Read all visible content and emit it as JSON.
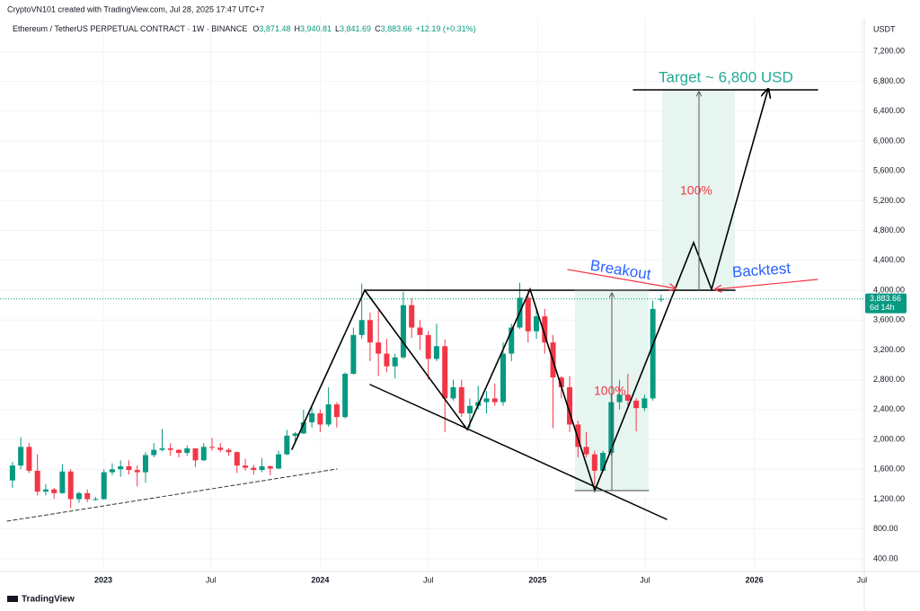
{
  "chart_data": {
    "type": "candlestick",
    "credit": "CryptoVN101 created with TradingView.com, Jul 28, 2025 17:47 UTC+7",
    "title": "Ethereum / TetherUS PERPETUAL CONTRACT · 1W · BINANCE",
    "ohlc_header": [
      "O",
      "3,871.48",
      "H",
      "3,940.81",
      "L",
      "3,841.69",
      "C",
      "3,883.66",
      "+12.19 (+0.31%)"
    ],
    "currency": "USDT",
    "brand": "TradingView",
    "up_color": "#089981",
    "down_color": "#f23645",
    "grid": true,
    "last_price": {
      "value": 3883.66,
      "label": "3,883.66"
    },
    "countdown": "6d 14h",
    "annotations": {
      "target": "Target ~ 6,800 USD",
      "breakout": "Breakout",
      "backtest": "Backtest",
      "measure_top": "100%",
      "measure_bottom": "100%"
    },
    "x": [
      "2022-08-01",
      "2022-08-15",
      "2022-08-29",
      "2022-09-12",
      "2022-09-26",
      "2022-10-10",
      "2022-10-24",
      "2022-11-07",
      "2022-11-21",
      "2022-12-05",
      "2022-12-19",
      "2023-01-02",
      "2023-01-16",
      "2023-01-30",
      "2023-02-13",
      "2023-02-27",
      "2023-03-13",
      "2023-03-27",
      "2023-04-10",
      "2023-04-24",
      "2023-05-08",
      "2023-05-22",
      "2023-06-05",
      "2023-06-19",
      "2023-07-03",
      "2023-07-17",
      "2023-07-31",
      "2023-08-14",
      "2023-08-28",
      "2023-09-11",
      "2023-09-25",
      "2023-10-09",
      "2023-10-23",
      "2023-11-06",
      "2023-11-20",
      "2023-12-04",
      "2023-12-18",
      "2024-01-01",
      "2024-01-15",
      "2024-01-29",
      "2024-02-12",
      "2024-02-26",
      "2024-03-11",
      "2024-03-25",
      "2024-04-08",
      "2024-04-22",
      "2024-05-06",
      "2024-05-20",
      "2024-06-03",
      "2024-06-17",
      "2024-07-01",
      "2024-07-15",
      "2024-07-29",
      "2024-08-12",
      "2024-08-26",
      "2024-09-09",
      "2024-09-23",
      "2024-10-07",
      "2024-10-21",
      "2024-11-04",
      "2024-11-18",
      "2024-12-02",
      "2024-12-16",
      "2024-12-30",
      "2025-01-13",
      "2025-01-27",
      "2025-02-10",
      "2025-02-24",
      "2025-03-10",
      "2025-03-24",
      "2025-04-07",
      "2025-04-21",
      "2025-05-05",
      "2025-05-19",
      "2025-06-02",
      "2025-06-16",
      "2025-06-30",
      "2025-07-14",
      "2025-07-28"
    ],
    "open": [
      1450,
      1650,
      1900,
      1580,
      1300,
      1330,
      1280,
      1570,
      1200,
      1280,
      1200,
      1200,
      1560,
      1600,
      1640,
      1590,
      1560,
      1790,
      1860,
      1880,
      1860,
      1820,
      1880,
      1720,
      1900,
      1890,
      1860,
      1830,
      1650,
      1620,
      1590,
      1640,
      1610,
      1800,
      2050,
      2080,
      2230,
      2350,
      2200,
      2470,
      2300,
      2880,
      3400,
      3600,
      3300,
      3150,
      2980,
      3100,
      3800,
      3500,
      3400,
      3080,
      3250,
      2550,
      2700,
      2350,
      2450,
      2500,
      2550,
      2500,
      3150,
      3500,
      3900,
      3450,
      3650,
      3300,
      2830,
      2700,
      2200,
      1900,
      1800,
      1580,
      1820,
      2500,
      2600,
      2520,
      2420,
      2550,
      3871.48
    ],
    "high": [
      1700,
      2030,
      1950,
      1800,
      1400,
      1350,
      1670,
      1600,
      1300,
      1330,
      1230,
      1600,
      1680,
      1720,
      1720,
      1650,
      1830,
      1950,
      2140,
      1950,
      1870,
      1920,
      1880,
      1950,
      2020,
      1950,
      1880,
      1840,
      1740,
      1660,
      1750,
      1650,
      1850,
      2130,
      2100,
      2400,
      2450,
      2400,
      2700,
      2500,
      2900,
      3500,
      4090,
      3700,
      3730,
      3350,
      3150,
      3980,
      3890,
      3600,
      3450,
      3550,
      3340,
      2800,
      2800,
      2550,
      2720,
      2650,
      2750,
      3300,
      3550,
      4100,
      4000,
      3750,
      3750,
      3400,
      2850,
      2850,
      2250,
      2100,
      1850,
      1850,
      2600,
      2800,
      2880,
      2550,
      2600,
      3860,
      3940.81
    ],
    "low": [
      1350,
      1600,
      1550,
      1250,
      1250,
      1200,
      1270,
      1080,
      1150,
      1160,
      1180,
      1190,
      1520,
      1500,
      1530,
      1370,
      1420,
      1760,
      1840,
      1780,
      1760,
      1780,
      1630,
      1710,
      1850,
      1830,
      1780,
      1550,
      1580,
      1530,
      1560,
      1520,
      1600,
      1790,
      1950,
      2070,
      2160,
      2100,
      2170,
      2160,
      2280,
      2870,
      3350,
      3050,
      2850,
      2900,
      2820,
      3080,
      3360,
      3200,
      2800,
      3050,
      2100,
      2520,
      2300,
      2150,
      2400,
      2350,
      2450,
      2450,
      3050,
      3480,
      3300,
      3350,
      3150,
      2150,
      2550,
      2100,
      1760,
      1760,
      1390,
      1560,
      1780,
      2400,
      2450,
      2110,
      2380,
      2520,
      3841.69
    ],
    "close": [
      1650,
      1900,
      1580,
      1300,
      1330,
      1280,
      1570,
      1200,
      1280,
      1200,
      1200,
      1560,
      1600,
      1640,
      1590,
      1560,
      1790,
      1860,
      1880,
      1860,
      1820,
      1880,
      1720,
      1900,
      1890,
      1860,
      1830,
      1650,
      1620,
      1590,
      1640,
      1610,
      1800,
      2050,
      2080,
      2230,
      2350,
      2200,
      2470,
      2300,
      2880,
      3400,
      3600,
      3300,
      3150,
      2980,
      3100,
      3800,
      3500,
      3400,
      3080,
      3250,
      2550,
      2700,
      2350,
      2450,
      2500,
      2550,
      2500,
      3150,
      3500,
      3900,
      3450,
      3650,
      3300,
      2830,
      2700,
      2200,
      1900,
      1800,
      1580,
      1820,
      2500,
      2600,
      2520,
      2420,
      2550,
      3750,
      3883.66
    ],
    "ylim": [
      230,
      7650
    ],
    "yticks": [
      {
        "value": 400,
        "label": "400.00"
      },
      {
        "value": 800,
        "label": "800.00"
      },
      {
        "value": 1200,
        "label": "1,200.00"
      },
      {
        "value": 1600,
        "label": "1,600.00"
      },
      {
        "value": 2000,
        "label": "2,000.00"
      },
      {
        "value": 2400,
        "label": "2,400.00"
      },
      {
        "value": 2800,
        "label": "2,800.00"
      },
      {
        "value": 3200,
        "label": "3,200.00"
      },
      {
        "value": 3600,
        "label": "3,600.00"
      },
      {
        "value": 4000,
        "label": "4,000.00"
      },
      {
        "value": 4400,
        "label": "4,400.00"
      },
      {
        "value": 4800,
        "label": "4,800.00"
      },
      {
        "value": 5200,
        "label": "5,200.00"
      },
      {
        "value": 5600,
        "label": "5,600.00"
      },
      {
        "value": 6000,
        "label": "6,000.00"
      },
      {
        "value": 6400,
        "label": "6,400.00"
      },
      {
        "value": 6800,
        "label": "6,800.00"
      },
      {
        "value": 7200,
        "label": "7,200.00"
      }
    ],
    "xlim": [
      "2022-07-11",
      "2026-07-05"
    ],
    "xticks": [
      {
        "value": "2023-01-01",
        "label": "2023"
      },
      {
        "value": "2023-07-01",
        "label": "Jul"
      },
      {
        "value": "2024-01-01",
        "label": "2024"
      },
      {
        "value": "2024-07-01",
        "label": "Jul"
      },
      {
        "value": "2025-01-01",
        "label": "2025"
      },
      {
        "value": "2025-07-01",
        "label": "Jul"
      },
      {
        "value": "2026-01-01",
        "label": "2026"
      },
      {
        "value": "2026-07-01",
        "label": "Jul"
      }
    ]
  }
}
